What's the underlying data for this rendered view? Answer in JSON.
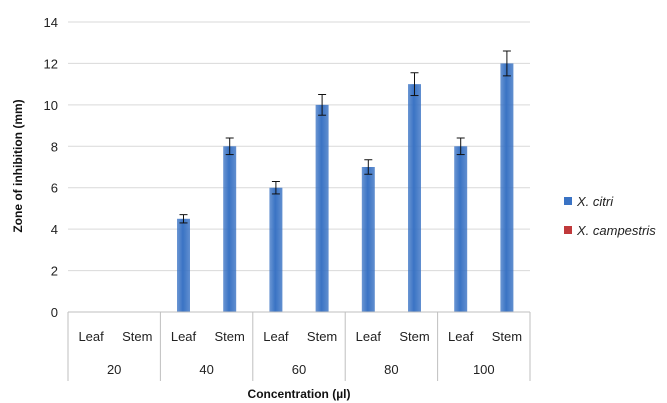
{
  "chart_data": {
    "type": "bar",
    "title": "",
    "xlabel": "Concentration (µl)",
    "ylabel": "Zone of inhibition (mm)",
    "ylim": [
      0,
      14
    ],
    "ytick_step": 2,
    "groups": [
      "20",
      "40",
      "60",
      "80",
      "100"
    ],
    "subcategories": [
      "Leaf",
      "Stem"
    ],
    "series": [
      {
        "name": "X. citri",
        "color": "#3a73c4",
        "values": [
          [
            null,
            null
          ],
          [
            4.5,
            8
          ],
          [
            6,
            10
          ],
          [
            7,
            11
          ],
          [
            8,
            12
          ]
        ],
        "errors": [
          [
            null,
            null
          ],
          [
            0.2,
            0.4
          ],
          [
            0.3,
            0.5
          ],
          [
            0.35,
            0.55
          ],
          [
            0.4,
            0.6
          ]
        ]
      },
      {
        "name": "X. campestris",
        "color": "#c0393b",
        "values": [
          [
            null,
            null
          ],
          [
            null,
            null
          ],
          [
            null,
            null
          ],
          [
            null,
            null
          ],
          [
            null,
            null
          ]
        ]
      }
    ],
    "grid": true,
    "legend_position": "right"
  }
}
